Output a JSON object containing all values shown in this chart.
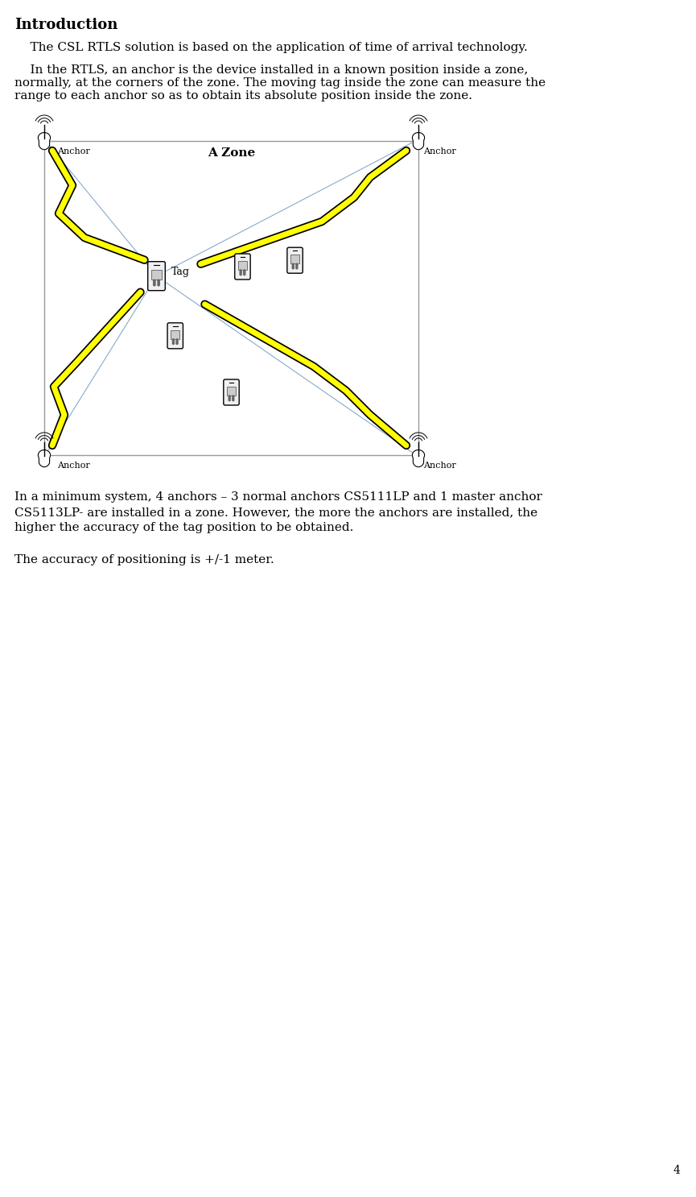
{
  "title": "Introduction",
  "paragraph1": "    The CSL RTLS solution is based on the application of time of arrival technology.",
  "paragraph2": "    In the RTLS, an anchor is the device installed in a known position inside a zone,\nnormally, at the corners of the zone. The moving tag inside the zone can measure the\nrange to each anchor so as to obtain its absolute position inside the zone.",
  "zone_label": "A Zone",
  "anchor_label": "Anchor",
  "tag_label": "Tag",
  "paragraph3": "In a minimum system, 4 anchors – 3 normal anchors CS5111LP and 1 master anchor\nCS5113LP- are installed in a zone. However, the more the anchors are installed, the\nhigher the accuracy of the tag position to be obtained.",
  "paragraph4": "The accuracy of positioning is +/-1 meter.",
  "page_number": "4",
  "bg_color": "#ffffff",
  "text_color": "#000000",
  "line_color": "#88aacc",
  "font_size_title": 13,
  "font_size_body": 11,
  "font_size_zone": 11,
  "font_size_label": 8,
  "font_size_page": 10
}
